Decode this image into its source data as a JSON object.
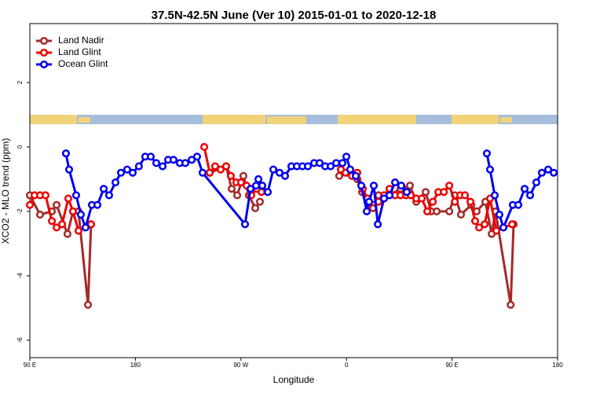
{
  "chart_data": {
    "type": "line",
    "title": "37.5N-42.5N June (Ver 10)   2015-01-01 to 2020-12-18",
    "x_label": "Longitude",
    "y_label": "XCO2 - MLO trend (ppm)",
    "xlim": [
      90,
      540
    ],
    "ylim": [
      -6.54,
      3.83
    ],
    "xticks": [
      {
        "value": 90,
        "label": "90 E"
      },
      180,
      {
        "value": 270,
        "label": "90 W"
      },
      {
        "value": 360,
        "label": "0"
      },
      {
        "value": 450,
        "label": "90 E"
      },
      {
        "value": 540,
        "label": "180"
      }
    ],
    "yticks": [
      2,
      0,
      -2,
      -4,
      -6
    ],
    "legend": "top-left",
    "series": [
      {
        "name": "Land Nadir",
        "color": "#a52a2a",
        "x": [
          90,
          98.7,
          108.8,
          112.8,
          122.1,
          126.8,
          131.5,
          139.6,
          142.2,
          null,
          243.4,
          257.4,
          262.1,
          266.8,
          272.1,
          276.8,
          282.2,
          286.2,
          null,
          353.8,
          359.9,
          369.2,
          373.3,
          377.9,
          382.6,
          387.3,
          396.7,
          406.1,
          414.1,
          419.5,
          427.5,
          432.2,
          436.9,
          447.7,
          452.4,
          457.6,
          466.4,
          471,
          478.4,
          483.8,
          487.1,
          500,
          502.5
        ],
        "values": [
          -1.5,
          -2.1,
          -2.0,
          -1.8,
          -2.7,
          -2.0,
          -2.0,
          -4.9,
          -2.4,
          null,
          -0.8,
          -0.6,
          -1.3,
          -1.5,
          -0.9,
          -1.5,
          -1.9,
          -1.7,
          null,
          -0.9,
          -0.8,
          -1.0,
          -1.4,
          -1.7,
          -1.8,
          -1.5,
          -1.5,
          -1.3,
          -1.2,
          -1.7,
          -1.4,
          -2.0,
          -2.0,
          -2.0,
          -1.5,
          -2.1,
          -1.8,
          -2.0,
          -1.7,
          -2.7,
          -2.0,
          -4.9,
          -2.4
        ]
      },
      {
        "name": "Land Glint",
        "color": "#ee0000",
        "x": [
          90,
          94,
          98.7,
          103.4,
          108.8,
          112.8,
          117.5,
          122.8,
          126.8,
          131.5,
          142.2,
          null,
          238.7,
          243.4,
          248,
          252.7,
          257.4,
          261.4,
          266.1,
          270.1,
          274.8,
          278.8,
          283.5,
          287.5,
          null,
          355.2,
          359.2,
          364.6,
          369.2,
          373.9,
          377.9,
          382.6,
          387.3,
          392,
          396.7,
          401.4,
          406.1,
          410.8,
          414.8,
          419.5,
          424.2,
          428.9,
          433.6,
          438.3,
          443,
          447.7,
          452.4,
          457,
          461,
          465.7,
          469.7,
          473.1,
          477.8,
          482.4,
          487.8,
          501.2
        ],
        "values": [
          -1.8,
          -1.5,
          -1.5,
          -1.5,
          -2.3,
          -2.5,
          -2.4,
          -1.6,
          -2.0,
          -2.6,
          -2.4,
          null,
          0.0,
          -0.8,
          -0.6,
          -0.7,
          -0.6,
          -0.9,
          -1.1,
          -1.1,
          -1.2,
          -1.5,
          -1.3,
          -1.4,
          null,
          -0.7,
          -0.8,
          -0.9,
          -0.8,
          -1.3,
          -1.6,
          -1.9,
          -1.7,
          -1.5,
          -1.3,
          -1.5,
          -1.5,
          -1.5,
          -1.5,
          -1.6,
          -1.6,
          -2.0,
          -1.7,
          -1.4,
          -1.4,
          -1.2,
          -1.7,
          -1.5,
          -1.5,
          -1.7,
          -2.3,
          -2.5,
          -2.4,
          -1.6,
          -2.6,
          -2.4
        ]
      },
      {
        "name": "Ocean Glint",
        "color": "#0000ee",
        "x": [
          120.8,
          123.5,
          129.5,
          133.5,
          137.5,
          142.9,
          147.6,
          153,
          157.6,
          163,
          167.7,
          173,
          177.7,
          183,
          188.4,
          193.1,
          197.8,
          203.2,
          207.9,
          212.5,
          217.9,
          222.6,
          228,
          232.6,
          237.3,
          273.5,
          278.2,
          282.9,
          284.9,
          288.2,
          292.9,
          297.6,
          302.9,
          307.6,
          313,
          317.7,
          322.4,
          327.1,
          332.4,
          337.1,
          341.8,
          346.5,
          351.2,
          356.5,
          359.9,
          363.2,
          367.9,
          372.6,
          377.3,
          379.3,
          383.3,
          386.7,
          392,
          396.7,
          401.4,
          406.7,
          411.4,
          null,
          479.7,
          482.4,
          486.4,
          490.4,
          493.8,
          501.8,
          506.5,
          511.9,
          516.6,
          521.9,
          526.6,
          532,
          536.7
        ],
        "values": [
          -0.2,
          -0.7,
          -1.5,
          -2.1,
          -2.5,
          -1.8,
          -1.8,
          -1.3,
          -1.5,
          -1.1,
          -0.8,
          -0.7,
          -0.8,
          -0.6,
          -0.3,
          -0.3,
          -0.5,
          -0.6,
          -0.4,
          -0.4,
          -0.5,
          -0.5,
          -0.4,
          -0.3,
          -0.8,
          -2.4,
          -1.3,
          -1.2,
          -1.0,
          -1.2,
          -1.4,
          -0.7,
          -0.8,
          -0.9,
          -0.6,
          -0.6,
          -0.6,
          -0.6,
          -0.5,
          -0.5,
          -0.6,
          -0.6,
          -0.5,
          -0.5,
          -0.3,
          -0.7,
          -0.9,
          -1.2,
          -2.0,
          -1.7,
          -1.2,
          -2.4,
          -1.6,
          -1.5,
          -1.1,
          -1.2,
          -1.4,
          null,
          -0.2,
          -0.7,
          -1.5,
          -2.1,
          -2.5,
          -1.8,
          -1.8,
          -1.3,
          -1.5,
          -1.1,
          -0.8,
          -0.7,
          -0.8
        ]
      }
    ]
  }
}
